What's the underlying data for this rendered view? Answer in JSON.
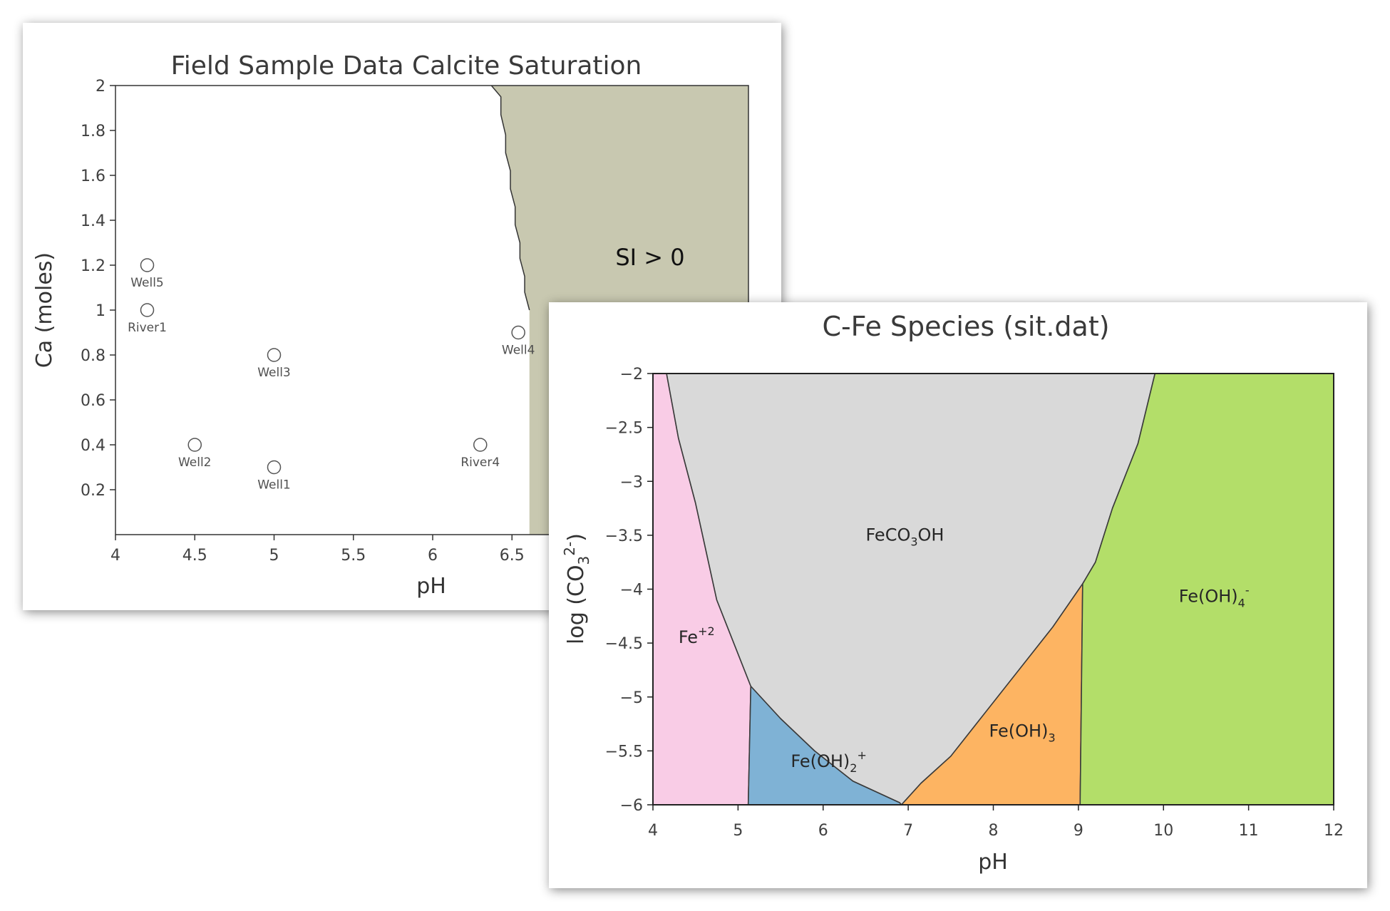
{
  "chart_data": [
    {
      "type": "scatter",
      "title": "Field Sample Data Calcite Saturation",
      "xlabel": "pH",
      "ylabel": "Ca (moles)",
      "xlim": [
        4,
        6.5
      ],
      "ylim": [
        0,
        2
      ],
      "xticks": [
        "4",
        "4.5",
        "5",
        "5.5",
        "6",
        "6.5"
      ],
      "yticks": [
        "0.2",
        "0.4",
        "0.6",
        "0.8",
        "1",
        "1.2",
        "1.4",
        "1.6",
        "1.8",
        "2"
      ],
      "points": [
        {
          "label": "Well5",
          "x": 4.2,
          "y": 1.2
        },
        {
          "label": "River1",
          "x": 4.2,
          "y": 1.0
        },
        {
          "label": "Well3",
          "x": 5.0,
          "y": 0.8
        },
        {
          "label": "Well4",
          "x": 6.54,
          "y": 0.9
        },
        {
          "label": "Well2",
          "x": 4.5,
          "y": 0.4
        },
        {
          "label": "River4",
          "x": 6.3,
          "y": 0.4
        },
        {
          "label": "Well1",
          "x": 5.0,
          "y": 0.3
        }
      ],
      "region": {
        "label": "SI > 0",
        "color": "#c8c8b0",
        "boundary": [
          [
            6.37,
            2.0
          ],
          [
            6.43,
            1.95
          ],
          [
            6.43,
            1.87
          ],
          [
            6.46,
            1.78
          ],
          [
            6.46,
            1.7
          ],
          [
            6.49,
            1.62
          ],
          [
            6.49,
            1.54
          ],
          [
            6.52,
            1.46
          ],
          [
            6.52,
            1.38
          ],
          [
            6.55,
            1.3
          ],
          [
            6.55,
            1.23
          ],
          [
            6.58,
            1.15
          ],
          [
            6.58,
            1.08
          ],
          [
            6.61,
            1.0
          ]
        ]
      },
      "grid": false
    },
    {
      "type": "area",
      "title": "C-Fe Species (sit.dat)",
      "xlabel": "pH",
      "ylabel_main": "log (CO",
      "ylabel_sub": "3",
      "ylabel_sup": "2-",
      "ylabel_close": ")",
      "xlim": [
        4,
        12
      ],
      "ylim": [
        -6,
        -2
      ],
      "xticks": [
        "4",
        "5",
        "6",
        "7",
        "8",
        "9",
        "10",
        "11",
        "12"
      ],
      "yticks": [
        "−2",
        "−2.5",
        "−3",
        "−3.5",
        "−4",
        "−4.5",
        "−5",
        "−5.5",
        "−6"
      ],
      "regions": [
        {
          "id": "fe2",
          "label_main": "Fe",
          "label_sub": "",
          "label_sup": "+2",
          "label_tail": "",
          "color": "#f9cce6",
          "label_at": [
            4.3,
            -4.5
          ],
          "polygon": [
            [
              4,
              -2
            ],
            [
              4.16,
              -2
            ],
            [
              4.3,
              -2.6
            ],
            [
              4.5,
              -3.2
            ],
            [
              4.75,
              -4.1
            ],
            [
              5.15,
              -4.9
            ],
            [
              5.12,
              -6
            ],
            [
              4,
              -6
            ]
          ]
        },
        {
          "id": "feoh2",
          "label_main": "Fe(OH)",
          "label_sub": "2",
          "label_sup": "+",
          "label_tail": "",
          "color": "#7fb2d5",
          "label_at": [
            5.62,
            -5.65
          ],
          "polygon": [
            [
              5.15,
              -4.9
            ],
            [
              5.5,
              -5.2
            ],
            [
              5.9,
              -5.5
            ],
            [
              6.35,
              -5.78
            ],
            [
              6.9,
              -5.98
            ],
            [
              6.92,
              -6
            ],
            [
              5.12,
              -6
            ]
          ]
        },
        {
          "id": "feco3oh",
          "label_main": "FeCO",
          "label_sub": "3",
          "label_sup": "",
          "label_tail": "OH",
          "color": "#d9d9d9",
          "label_at": [
            6.5,
            -3.55
          ],
          "polygon": [
            [
              4.16,
              -2
            ],
            [
              9.9,
              -2
            ],
            [
              9.7,
              -2.65
            ],
            [
              9.4,
              -3.25
            ],
            [
              9.2,
              -3.75
            ],
            [
              9.05,
              -3.95
            ],
            [
              8.7,
              -4.35
            ],
            [
              8.3,
              -4.75
            ],
            [
              7.9,
              -5.15
            ],
            [
              7.5,
              -5.55
            ],
            [
              7.15,
              -5.8
            ],
            [
              6.92,
              -6
            ],
            [
              6.9,
              -5.98
            ],
            [
              6.35,
              -5.78
            ],
            [
              5.9,
              -5.5
            ],
            [
              5.5,
              -5.2
            ],
            [
              5.15,
              -4.9
            ],
            [
              4.75,
              -4.1
            ],
            [
              4.5,
              -3.2
            ],
            [
              4.3,
              -2.6
            ]
          ]
        },
        {
          "id": "feoh3",
          "label_main": "Fe(OH)",
          "label_sub": "3",
          "label_sup": "",
          "label_tail": "",
          "color": "#fdb462",
          "label_at": [
            7.95,
            -5.37
          ],
          "polygon": [
            [
              6.92,
              -6
            ],
            [
              7.15,
              -5.8
            ],
            [
              7.5,
              -5.55
            ],
            [
              7.9,
              -5.15
            ],
            [
              8.3,
              -4.75
            ],
            [
              8.7,
              -4.35
            ],
            [
              9.05,
              -3.95
            ],
            [
              9.02,
              -6
            ]
          ]
        },
        {
          "id": "feoh4",
          "label_main": "Fe(OH)",
          "label_sub": "4",
          "label_sup": "-",
          "label_tail": "",
          "color": "#b3de69",
          "label_at": [
            10.18,
            -4.12
          ],
          "polygon": [
            [
              9.05,
              -3.95
            ],
            [
              9.2,
              -3.75
            ],
            [
              9.4,
              -3.25
            ],
            [
              9.7,
              -2.65
            ],
            [
              9.9,
              -2
            ],
            [
              12,
              -2
            ],
            [
              12,
              -6
            ],
            [
              9.02,
              -6
            ]
          ]
        }
      ],
      "grid": false
    }
  ]
}
